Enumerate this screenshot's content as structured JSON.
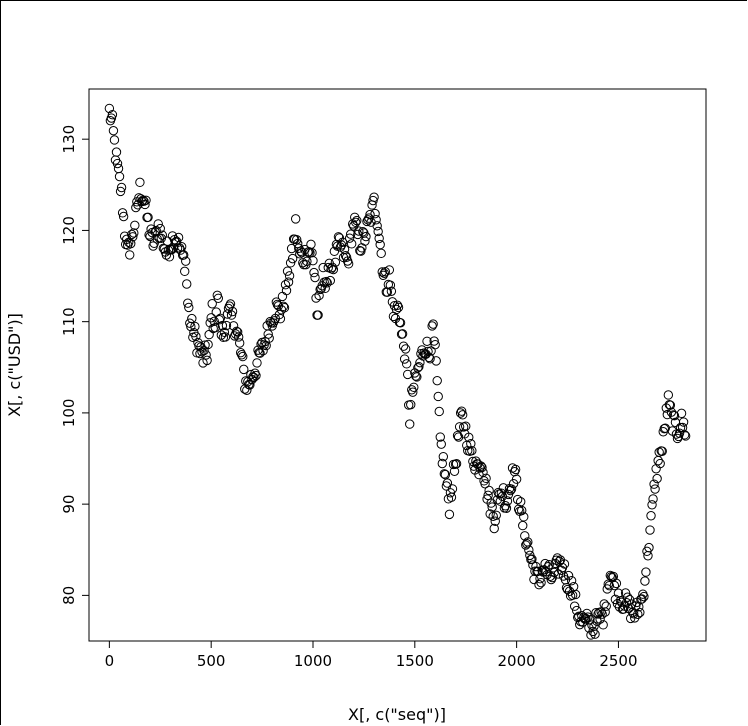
{
  "chart_data": {
    "type": "scatter",
    "xlabel": "X[, c(\"seq\")]",
    "ylabel": "X[, c(\"USD\")]",
    "xlim": [
      -100,
      2930
    ],
    "ylim": [
      75,
      135.5
    ],
    "xticks": [
      0,
      500,
      1000,
      1500,
      2000,
      2500
    ],
    "yticks": [
      80,
      90,
      100,
      110,
      120,
      130
    ],
    "marker": "open-circle",
    "point_color": "#000000",
    "series_trace": [
      [
        0,
        133.0
      ],
      [
        15,
        131.5
      ],
      [
        30,
        128.5
      ],
      [
        45,
        126.0
      ],
      [
        60,
        124.0
      ],
      [
        75,
        120.0
      ],
      [
        90,
        117.5
      ],
      [
        110,
        119.0
      ],
      [
        130,
        121.5
      ],
      [
        150,
        124.5
      ],
      [
        170,
        123.5
      ],
      [
        185,
        121.5
      ],
      [
        200,
        119.5
      ],
      [
        220,
        118.5
      ],
      [
        240,
        120.5
      ],
      [
        260,
        119.0
      ],
      [
        280,
        117.5
      ],
      [
        300,
        118.5
      ],
      [
        320,
        119.5
      ],
      [
        340,
        118.5
      ],
      [
        360,
        117.0
      ],
      [
        375,
        116.5
      ],
      [
        385,
        112.0
      ],
      [
        400,
        109.5
      ],
      [
        420,
        108.5
      ],
      [
        440,
        107.0
      ],
      [
        460,
        106.0
      ],
      [
        480,
        106.5
      ],
      [
        495,
        109.0
      ],
      [
        505,
        111.5
      ],
      [
        515,
        109.0
      ],
      [
        530,
        113.0
      ],
      [
        545,
        109.5
      ],
      [
        560,
        108.5
      ],
      [
        575,
        110.0
      ],
      [
        590,
        111.0
      ],
      [
        610,
        110.0
      ],
      [
        630,
        108.5
      ],
      [
        650,
        106.0
      ],
      [
        665,
        103.5
      ],
      [
        680,
        103.0
      ],
      [
        700,
        104.0
      ],
      [
        720,
        105.0
      ],
      [
        740,
        106.5
      ],
      [
        760,
        107.5
      ],
      [
        780,
        109.0
      ],
      [
        800,
        110.5
      ],
      [
        820,
        111.5
      ],
      [
        840,
        111.0
      ],
      [
        860,
        112.5
      ],
      [
        880,
        115.0
      ],
      [
        900,
        117.5
      ],
      [
        915,
        120.5
      ],
      [
        930,
        117.5
      ],
      [
        950,
        117.0
      ],
      [
        970,
        117.5
      ],
      [
        990,
        118.0
      ],
      [
        1010,
        115.0
      ],
      [
        1020,
        110.5
      ],
      [
        1035,
        112.5
      ],
      [
        1050,
        115.0
      ],
      [
        1070,
        114.5
      ],
      [
        1090,
        116.0
      ],
      [
        1110,
        117.0
      ],
      [
        1130,
        118.5
      ],
      [
        1150,
        117.5
      ],
      [
        1170,
        116.5
      ],
      [
        1185,
        119.0
      ],
      [
        1200,
        121.0
      ],
      [
        1215,
        120.0
      ],
      [
        1230,
        118.5
      ],
      [
        1250,
        119.0
      ],
      [
        1270,
        120.5
      ],
      [
        1290,
        122.0
      ],
      [
        1300,
        123.0
      ],
      [
        1315,
        121.5
      ],
      [
        1330,
        118.5
      ],
      [
        1345,
        115.5
      ],
      [
        1360,
        114.0
      ],
      [
        1375,
        115.0
      ],
      [
        1390,
        112.0
      ],
      [
        1405,
        110.5
      ],
      [
        1420,
        112.0
      ],
      [
        1435,
        108.5
      ],
      [
        1450,
        107.0
      ],
      [
        1465,
        103.5
      ],
      [
        1475,
        99.5
      ],
      [
        1490,
        102.5
      ],
      [
        1510,
        104.0
      ],
      [
        1530,
        106.0
      ],
      [
        1550,
        107.5
      ],
      [
        1570,
        106.5
      ],
      [
        1590,
        109.0
      ],
      [
        1605,
        105.0
      ],
      [
        1615,
        101.0
      ],
      [
        1625,
        97.0
      ],
      [
        1640,
        94.5
      ],
      [
        1655,
        92.0
      ],
      [
        1670,
        90.0
      ],
      [
        1685,
        92.5
      ],
      [
        1700,
        94.5
      ],
      [
        1715,
        97.5
      ],
      [
        1730,
        99.5
      ],
      [
        1750,
        98.0
      ],
      [
        1770,
        96.0
      ],
      [
        1790,
        95.0
      ],
      [
        1810,
        94.0
      ],
      [
        1830,
        95.0
      ],
      [
        1850,
        92.0
      ],
      [
        1870,
        90.0
      ],
      [
        1890,
        88.5
      ],
      [
        1910,
        90.5
      ],
      [
        1930,
        91.5
      ],
      [
        1950,
        90.0
      ],
      [
        1970,
        92.5
      ],
      [
        1990,
        93.5
      ],
      [
        2010,
        90.5
      ],
      [
        2030,
        88.0
      ],
      [
        2050,
        86.0
      ],
      [
        2070,
        84.0
      ],
      [
        2090,
        82.5
      ],
      [
        2110,
        81.5
      ],
      [
        2130,
        83.0
      ],
      [
        2150,
        82.5
      ],
      [
        2170,
        82.0
      ],
      [
        2190,
        82.5
      ],
      [
        2210,
        83.5
      ],
      [
        2230,
        83.0
      ],
      [
        2250,
        81.5
      ],
      [
        2270,
        81.0
      ],
      [
        2290,
        79.0
      ],
      [
        2310,
        77.5
      ],
      [
        2330,
        77.0
      ],
      [
        2350,
        77.0
      ],
      [
        2370,
        76.5
      ],
      [
        2390,
        77.0
      ],
      [
        2410,
        77.5
      ],
      [
        2430,
        78.0
      ],
      [
        2445,
        81.0
      ],
      [
        2460,
        82.5
      ],
      [
        2480,
        81.0
      ],
      [
        2500,
        80.0
      ],
      [
        2520,
        79.5
      ],
      [
        2540,
        79.0
      ],
      [
        2560,
        78.5
      ],
      [
        2580,
        78.0
      ],
      [
        2600,
        78.5
      ],
      [
        2620,
        80.0
      ],
      [
        2640,
        84.0
      ],
      [
        2660,
        88.0
      ],
      [
        2680,
        92.5
      ],
      [
        2700,
        95.0
      ],
      [
        2715,
        96.0
      ],
      [
        2730,
        99.0
      ],
      [
        2745,
        101.0
      ],
      [
        2760,
        99.5
      ],
      [
        2775,
        98.5
      ],
      [
        2790,
        98.0
      ],
      [
        2810,
        99.0
      ],
      [
        2830,
        98.0
      ]
    ]
  }
}
